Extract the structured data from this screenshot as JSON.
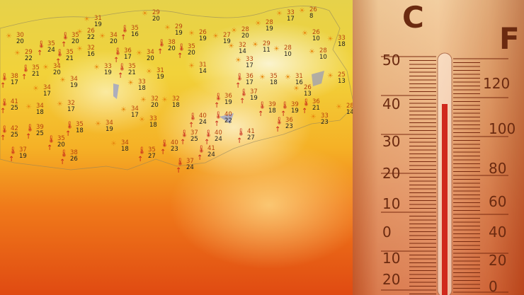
{
  "map": {
    "labels": [
      {
        "icon": "sun-cloud",
        "hi": "29",
        "lo": "20"
      },
      {
        "icon": "sun-cloud",
        "hi": "31",
        "lo": "19"
      },
      {
        "icon": "thermometer-hot",
        "hi": "35",
        "lo": "16"
      },
      {
        "icon": "sun-cloud",
        "hi": "26",
        "lo": "22"
      },
      {
        "icon": "sun-cloud",
        "hi": "34",
        "lo": "20"
      },
      {
        "icon": "thermometer-hot",
        "hi": "35",
        "lo": "20"
      },
      {
        "icon": "sun-cloud",
        "hi": "30",
        "lo": "20"
      },
      {
        "icon": "thermometer-hot",
        "hi": "35",
        "lo": "24"
      },
      {
        "icon": "sun-cloud",
        "hi": "29",
        "lo": "22"
      },
      {
        "icon": "thermometer-hot",
        "hi": "35",
        "lo": "21"
      },
      {
        "icon": "sun-cloud",
        "hi": "32",
        "lo": "16"
      },
      {
        "icon": "thermometer-hot",
        "hi": "36",
        "lo": "17"
      },
      {
        "icon": "thermometer-hot",
        "hi": "38",
        "lo": "20"
      },
      {
        "icon": "thermometer-hot",
        "hi": "35",
        "lo": "20"
      },
      {
        "icon": "sun-cloud",
        "hi": "34",
        "lo": "20"
      },
      {
        "icon": "sun-cloud",
        "hi": "29",
        "lo": "19"
      },
      {
        "icon": "sun-cloud",
        "hi": "26",
        "lo": "19"
      },
      {
        "icon": "sun-cloud",
        "hi": "27",
        "lo": "19"
      },
      {
        "icon": "sun-cloud",
        "hi": "28",
        "lo": "20"
      },
      {
        "icon": "sun-cloud",
        "hi": "28",
        "lo": "19"
      },
      {
        "icon": "sun-cloud",
        "hi": "33",
        "lo": "17"
      },
      {
        "icon": "sun-cloud",
        "hi": "26",
        "lo": "8"
      },
      {
        "icon": "sun-cloud",
        "hi": "26",
        "lo": "10"
      },
      {
        "icon": "sun-cloud",
        "hi": "33",
        "lo": "18"
      },
      {
        "icon": "sun-cloud",
        "hi": "32",
        "lo": "14"
      },
      {
        "icon": "sun-cloud",
        "hi": "29",
        "lo": "11"
      },
      {
        "icon": "sun-cloud",
        "hi": "28",
        "lo": "10"
      },
      {
        "icon": "sun-cloud",
        "hi": "28",
        "lo": "10"
      },
      {
        "icon": "sun-cloud",
        "hi": "31",
        "lo": "14"
      },
      {
        "icon": "sun-cloud",
        "hi": "33",
        "lo": "17"
      },
      {
        "icon": "thermometer-hot",
        "hi": "35",
        "lo": "21"
      },
      {
        "icon": "sun-cloud",
        "hi": "34",
        "lo": "20"
      },
      {
        "icon": "sun-cloud",
        "hi": "33",
        "lo": "19"
      },
      {
        "icon": "thermometer-hot",
        "hi": "35",
        "lo": "21"
      },
      {
        "icon": "sun-cloud",
        "hi": "31",
        "lo": "19"
      },
      {
        "icon": "thermometer-hot",
        "hi": "38",
        "lo": "17"
      },
      {
        "icon": "sun-cloud",
        "hi": "34",
        "lo": "19"
      },
      {
        "icon": "sun-cloud",
        "hi": "34",
        "lo": "17"
      },
      {
        "icon": "sun-cloud",
        "hi": "33",
        "lo": "18"
      },
      {
        "icon": "thermometer-hot",
        "hi": "36",
        "lo": "17"
      },
      {
        "icon": "sun-cloud",
        "hi": "35",
        "lo": "18"
      },
      {
        "icon": "sun-cloud",
        "hi": "31",
        "lo": "16"
      },
      {
        "icon": "sun-cloud",
        "hi": "25",
        "lo": "13"
      },
      {
        "icon": "sun-cloud",
        "hi": "26",
        "lo": "13"
      },
      {
        "icon": "thermometer-hot",
        "hi": "37",
        "lo": "19"
      },
      {
        "icon": "thermometer-hot",
        "hi": "36",
        "lo": "19"
      },
      {
        "icon": "thermometer-hot",
        "hi": "39",
        "lo": "18"
      },
      {
        "icon": "thermometer-hot",
        "hi": "39",
        "lo": "19"
      },
      {
        "icon": "thermometer-hot",
        "hi": "36",
        "lo": "21"
      },
      {
        "icon": "sun-cloud",
        "hi": "28",
        "lo": "14"
      },
      {
        "icon": "thermometer-hot",
        "hi": "41",
        "lo": "25"
      },
      {
        "icon": "sun-cloud",
        "hi": "34",
        "lo": "18"
      },
      {
        "icon": "sun-cloud",
        "hi": "32",
        "lo": "17"
      },
      {
        "icon": "sun-cloud",
        "hi": "34",
        "lo": "17"
      },
      {
        "icon": "sun-cloud",
        "hi": "32",
        "lo": "20"
      },
      {
        "icon": "sun-cloud",
        "hi": "32",
        "lo": "18"
      },
      {
        "icon": "sun-cloud",
        "hi": "33",
        "lo": "18"
      },
      {
        "icon": "thermometer-hot",
        "hi": "40",
        "lo": "24"
      },
      {
        "icon": "thermometer-hot",
        "hi": "40",
        "lo": "22"
      },
      {
        "icon": "thermometer-hot",
        "hi": "36",
        "lo": "23"
      },
      {
        "icon": "sun-cloud",
        "hi": "33",
        "lo": "23"
      },
      {
        "icon": "thermometer-hot",
        "hi": "42",
        "lo": "25"
      },
      {
        "icon": "thermometer-hot",
        "hi": "39",
        "lo": "25"
      },
      {
        "icon": "thermometer-hot",
        "hi": "35",
        "lo": "18"
      },
      {
        "icon": "sun-cloud",
        "hi": "34",
        "lo": "19"
      },
      {
        "icon": "thermometer-hot",
        "hi": "37",
        "lo": "25"
      },
      {
        "icon": "thermometer-hot",
        "hi": "40",
        "lo": "24"
      },
      {
        "icon": "thermometer-hot",
        "hi": "41",
        "lo": "27"
      },
      {
        "icon": "thermometer-hot",
        "hi": "35",
        "lo": "20"
      },
      {
        "icon": "thermometer-hot",
        "hi": "37",
        "lo": "19"
      },
      {
        "icon": "thermometer-hot",
        "hi": "38",
        "lo": "26"
      },
      {
        "icon": "sun-cloud",
        "hi": "34",
        "lo": "18"
      },
      {
        "icon": "thermometer-hot",
        "hi": "40",
        "lo": "23"
      },
      {
        "icon": "thermometer-hot",
        "hi": "35",
        "lo": "27"
      },
      {
        "icon": "thermometer-hot",
        "hi": "41",
        "lo": "24"
      },
      {
        "icon": "thermometer-hot",
        "hi": "37",
        "lo": "24"
      }
    ]
  },
  "thermometer": {
    "celsius_unit": "C",
    "fahrenheit_unit": "F",
    "celsius_labels": [
      "50",
      "40",
      "30",
      "20",
      "10",
      "0",
      "10",
      "20"
    ],
    "fahrenheit_labels": [
      "120",
      "100",
      "80",
      "60",
      "40",
      "20",
      "0"
    ],
    "reading_celsius": 40,
    "mercury_color": "#d0281c"
  }
}
